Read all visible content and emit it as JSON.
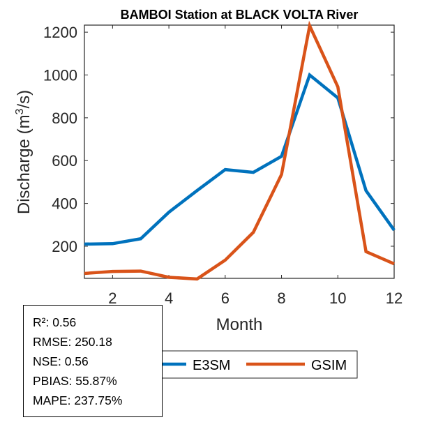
{
  "chart_data": {
    "type": "line",
    "title": "BAMBOI  Station at  BLACK VOLTA  River",
    "xlabel": "Month",
    "ylabel_prefix": "Discharge (m",
    "ylabel_sup": "3",
    "ylabel_suffix": "/s)",
    "xlim": [
      1,
      12
    ],
    "ylim": [
      50,
      1233
    ],
    "xticks": [
      2,
      4,
      6,
      8,
      10,
      12
    ],
    "xtick_labels": [
      "2",
      "4",
      "6",
      "8",
      "10",
      "12"
    ],
    "yticks": [
      200,
      400,
      600,
      800,
      1000,
      1200
    ],
    "ytick_labels": [
      "200",
      "400",
      "600",
      "800",
      "1000",
      "1200"
    ],
    "grid": false,
    "x": [
      1,
      2,
      3,
      4,
      5,
      6,
      7,
      8,
      9,
      10,
      11,
      12
    ],
    "series": [
      {
        "name": "E3SM",
        "color": "#0072BD",
        "values": [
          210,
          212,
          235,
          359,
          460,
          558,
          545,
          620,
          1000,
          893,
          460,
          275
        ]
      },
      {
        "name": "GSIM",
        "color": "#D95319",
        "values": [
          73,
          82,
          84,
          55,
          47,
          135,
          265,
          535,
          1230,
          945,
          175,
          118
        ]
      }
    ],
    "legend": {
      "placement": "bottom-center-outside",
      "entries": [
        "E3SM",
        "GSIM"
      ]
    },
    "annotation": {
      "placement": "bottom-left-outside",
      "lines": [
        "R²: 0.56",
        "RMSE: 250.18",
        "NSE: 0.56",
        "PBIAS: 55.87%",
        "MAPE: 237.75%"
      ]
    }
  }
}
